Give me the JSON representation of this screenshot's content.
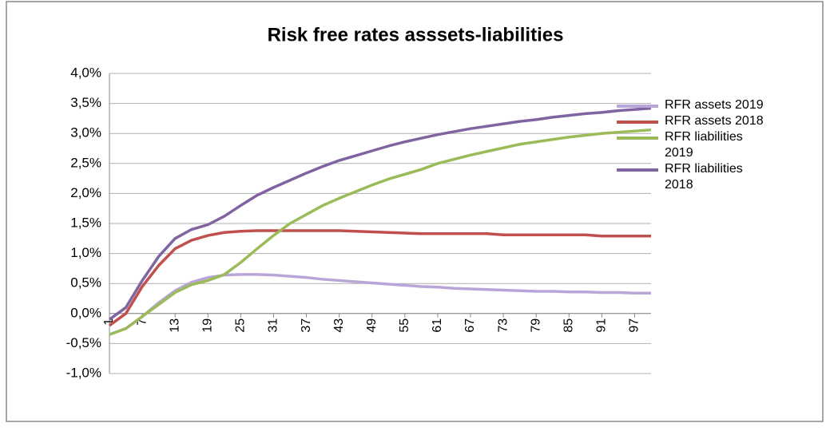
{
  "chart_data": {
    "type": "line",
    "title": "Risk free rates asssets-liabilities",
    "x": [
      1,
      4,
      7,
      10,
      13,
      16,
      19,
      22,
      25,
      28,
      31,
      34,
      37,
      40,
      43,
      46,
      49,
      52,
      55,
      58,
      61,
      64,
      67,
      70,
      73,
      76,
      79,
      82,
      85,
      88,
      91,
      94,
      97,
      100
    ],
    "xlim": [
      1,
      100
    ],
    "xticks": [
      1,
      7,
      13,
      19,
      25,
      31,
      37,
      43,
      49,
      55,
      61,
      67,
      73,
      79,
      85,
      91,
      97
    ],
    "ylim": [
      -1,
      4
    ],
    "yticks": [
      {
        "value": -1,
        "label": "-1,0%"
      },
      {
        "value": -0.5,
        "label": "-0,5%"
      },
      {
        "value": 0,
        "label": "0,0%"
      },
      {
        "value": 0.5,
        "label": "0,5%"
      },
      {
        "value": 1,
        "label": "1,0%"
      },
      {
        "value": 1.5,
        "label": "1,5%"
      },
      {
        "value": 2,
        "label": "2,0%"
      },
      {
        "value": 2.5,
        "label": "2,5%"
      },
      {
        "value": 3,
        "label": "3,0%"
      },
      {
        "value": 3.5,
        "label": "3,5%"
      },
      {
        "value": 4,
        "label": "4,0%"
      }
    ],
    "grid": true,
    "legend": "right",
    "series": [
      {
        "name": "RFR assets 2019",
        "color": "#b9a6d8",
        "values": [
          -0.35,
          -0.25,
          -0.05,
          0.18,
          0.38,
          0.52,
          0.6,
          0.64,
          0.65,
          0.65,
          0.64,
          0.62,
          0.6,
          0.57,
          0.55,
          0.53,
          0.51,
          0.49,
          0.47,
          0.45,
          0.44,
          0.42,
          0.41,
          0.4,
          0.39,
          0.38,
          0.37,
          0.37,
          0.36,
          0.36,
          0.35,
          0.35,
          0.34,
          0.34
        ]
      },
      {
        "name": "RFR assets 2018",
        "color": "#c0504d",
        "values": [
          -0.2,
          0.0,
          0.45,
          0.8,
          1.08,
          1.22,
          1.3,
          1.35,
          1.37,
          1.38,
          1.38,
          1.38,
          1.38,
          1.38,
          1.38,
          1.37,
          1.36,
          1.35,
          1.34,
          1.33,
          1.33,
          1.33,
          1.33,
          1.33,
          1.31,
          1.31,
          1.31,
          1.31,
          1.31,
          1.31,
          1.29,
          1.29,
          1.29,
          1.29
        ]
      },
      {
        "name": "RFR liabilities 2019",
        "color": "#9bbb59",
        "values": [
          -0.35,
          -0.25,
          -0.05,
          0.15,
          0.35,
          0.48,
          0.55,
          0.65,
          0.85,
          1.08,
          1.3,
          1.5,
          1.65,
          1.8,
          1.92,
          2.03,
          2.14,
          2.24,
          2.32,
          2.4,
          2.5,
          2.57,
          2.64,
          2.7,
          2.76,
          2.82,
          2.86,
          2.9,
          2.94,
          2.97,
          3.0,
          3.02,
          3.04,
          3.06
        ]
      },
      {
        "name": "RFR liabilities 2018",
        "color": "#8064a2",
        "values": [
          -0.1,
          0.1,
          0.55,
          0.95,
          1.25,
          1.4,
          1.48,
          1.62,
          1.8,
          1.97,
          2.1,
          2.22,
          2.34,
          2.45,
          2.55,
          2.63,
          2.71,
          2.79,
          2.86,
          2.92,
          2.98,
          3.03,
          3.08,
          3.12,
          3.16,
          3.2,
          3.23,
          3.27,
          3.3,
          3.33,
          3.35,
          3.38,
          3.4,
          3.42
        ]
      }
    ]
  }
}
